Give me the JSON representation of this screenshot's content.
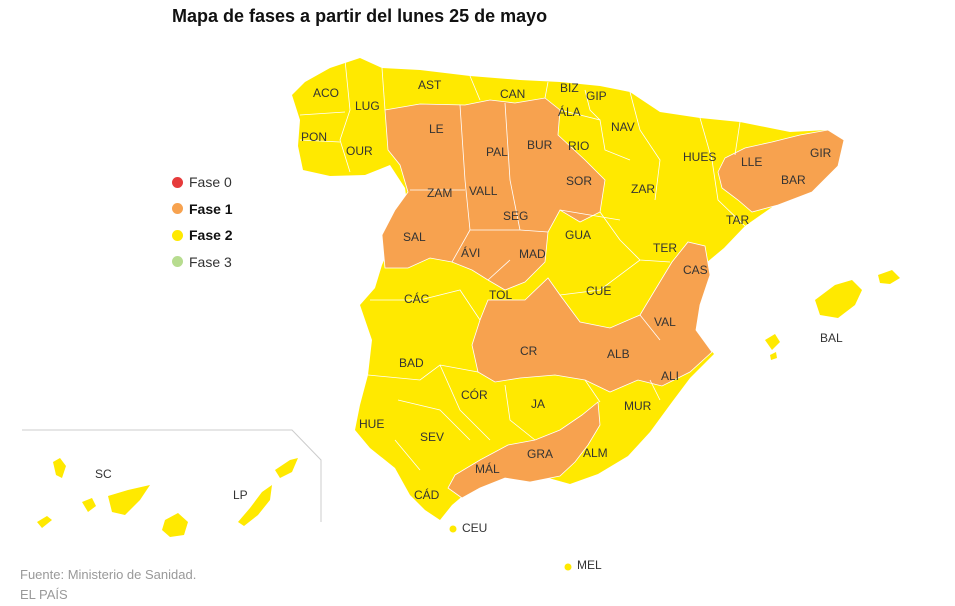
{
  "title": "Mapa de fases a partir del lunes 25 de mayo",
  "colors": {
    "fase0": "#e63b3b",
    "fase1": "#f7a24f",
    "fase2": "#ffe900",
    "fase3": "#b7dc8f",
    "border": "#ffffff",
    "label": "#333333"
  },
  "legend": [
    {
      "label": "Fase 0",
      "color": "#e63b3b",
      "bold": false
    },
    {
      "label": "Fase 1",
      "color": "#f7a24f",
      "bold": true
    },
    {
      "label": "Fase 2",
      "color": "#ffe900",
      "bold": true
    },
    {
      "label": "Fase 3",
      "color": "#b7dc8f",
      "bold": false
    }
  ],
  "provinces": [
    {
      "code": "ACO",
      "phase": 2
    },
    {
      "code": "LUG",
      "phase": 2
    },
    {
      "code": "AST",
      "phase": 2
    },
    {
      "code": "CAN",
      "phase": 2
    },
    {
      "code": "BIZ",
      "phase": 2
    },
    {
      "code": "GIP",
      "phase": 2
    },
    {
      "code": "ÁLA",
      "phase": 2
    },
    {
      "code": "PON",
      "phase": 2
    },
    {
      "code": "OUR",
      "phase": 2
    },
    {
      "code": "LE",
      "phase": 1
    },
    {
      "code": "PAL",
      "phase": 1
    },
    {
      "code": "BUR",
      "phase": 1
    },
    {
      "code": "RIO",
      "phase": 2
    },
    {
      "code": "NAV",
      "phase": 2
    },
    {
      "code": "HUES",
      "phase": 2
    },
    {
      "code": "LLE",
      "phase": 1
    },
    {
      "code": "GIR",
      "phase": 1
    },
    {
      "code": "BAR",
      "phase": 1
    },
    {
      "code": "ZAM",
      "phase": 1
    },
    {
      "code": "VALL",
      "phase": 1
    },
    {
      "code": "SOR",
      "phase": 1
    },
    {
      "code": "ZAR",
      "phase": 2
    },
    {
      "code": "TAR",
      "phase": 2
    },
    {
      "code": "SEG",
      "phase": 1
    },
    {
      "code": "SAL",
      "phase": 1
    },
    {
      "code": "ÁVI",
      "phase": 1
    },
    {
      "code": "MAD",
      "phase": 1
    },
    {
      "code": "GUA",
      "phase": 2
    },
    {
      "code": "TER",
      "phase": 2
    },
    {
      "code": "CAS",
      "phase": 1
    },
    {
      "code": "CÁC",
      "phase": 2
    },
    {
      "code": "TOL",
      "phase": 1
    },
    {
      "code": "CUE",
      "phase": 2
    },
    {
      "code": "VAL",
      "phase": 1
    },
    {
      "code": "BAL",
      "phase": 2
    },
    {
      "code": "BAD",
      "phase": 2
    },
    {
      "code": "CR",
      "phase": 1
    },
    {
      "code": "ALB",
      "phase": 1
    },
    {
      "code": "ALI",
      "phase": 1
    },
    {
      "code": "CÓR",
      "phase": 2
    },
    {
      "code": "JA",
      "phase": 2
    },
    {
      "code": "MUR",
      "phase": 2
    },
    {
      "code": "HUE",
      "phase": 2
    },
    {
      "code": "SEV",
      "phase": 2
    },
    {
      "code": "GRA",
      "phase": 1
    },
    {
      "code": "ALM",
      "phase": 2
    },
    {
      "code": "MÁL",
      "phase": 1
    },
    {
      "code": "CÁD",
      "phase": 2
    },
    {
      "code": "CEU",
      "phase": 2
    },
    {
      "code": "MEL",
      "phase": 2
    },
    {
      "code": "SC",
      "phase": 2
    },
    {
      "code": "LP",
      "phase": 2
    }
  ],
  "source": {
    "line1": "Fuente: Ministerio de Sanidad.",
    "line2": "EL PAÍS"
  }
}
